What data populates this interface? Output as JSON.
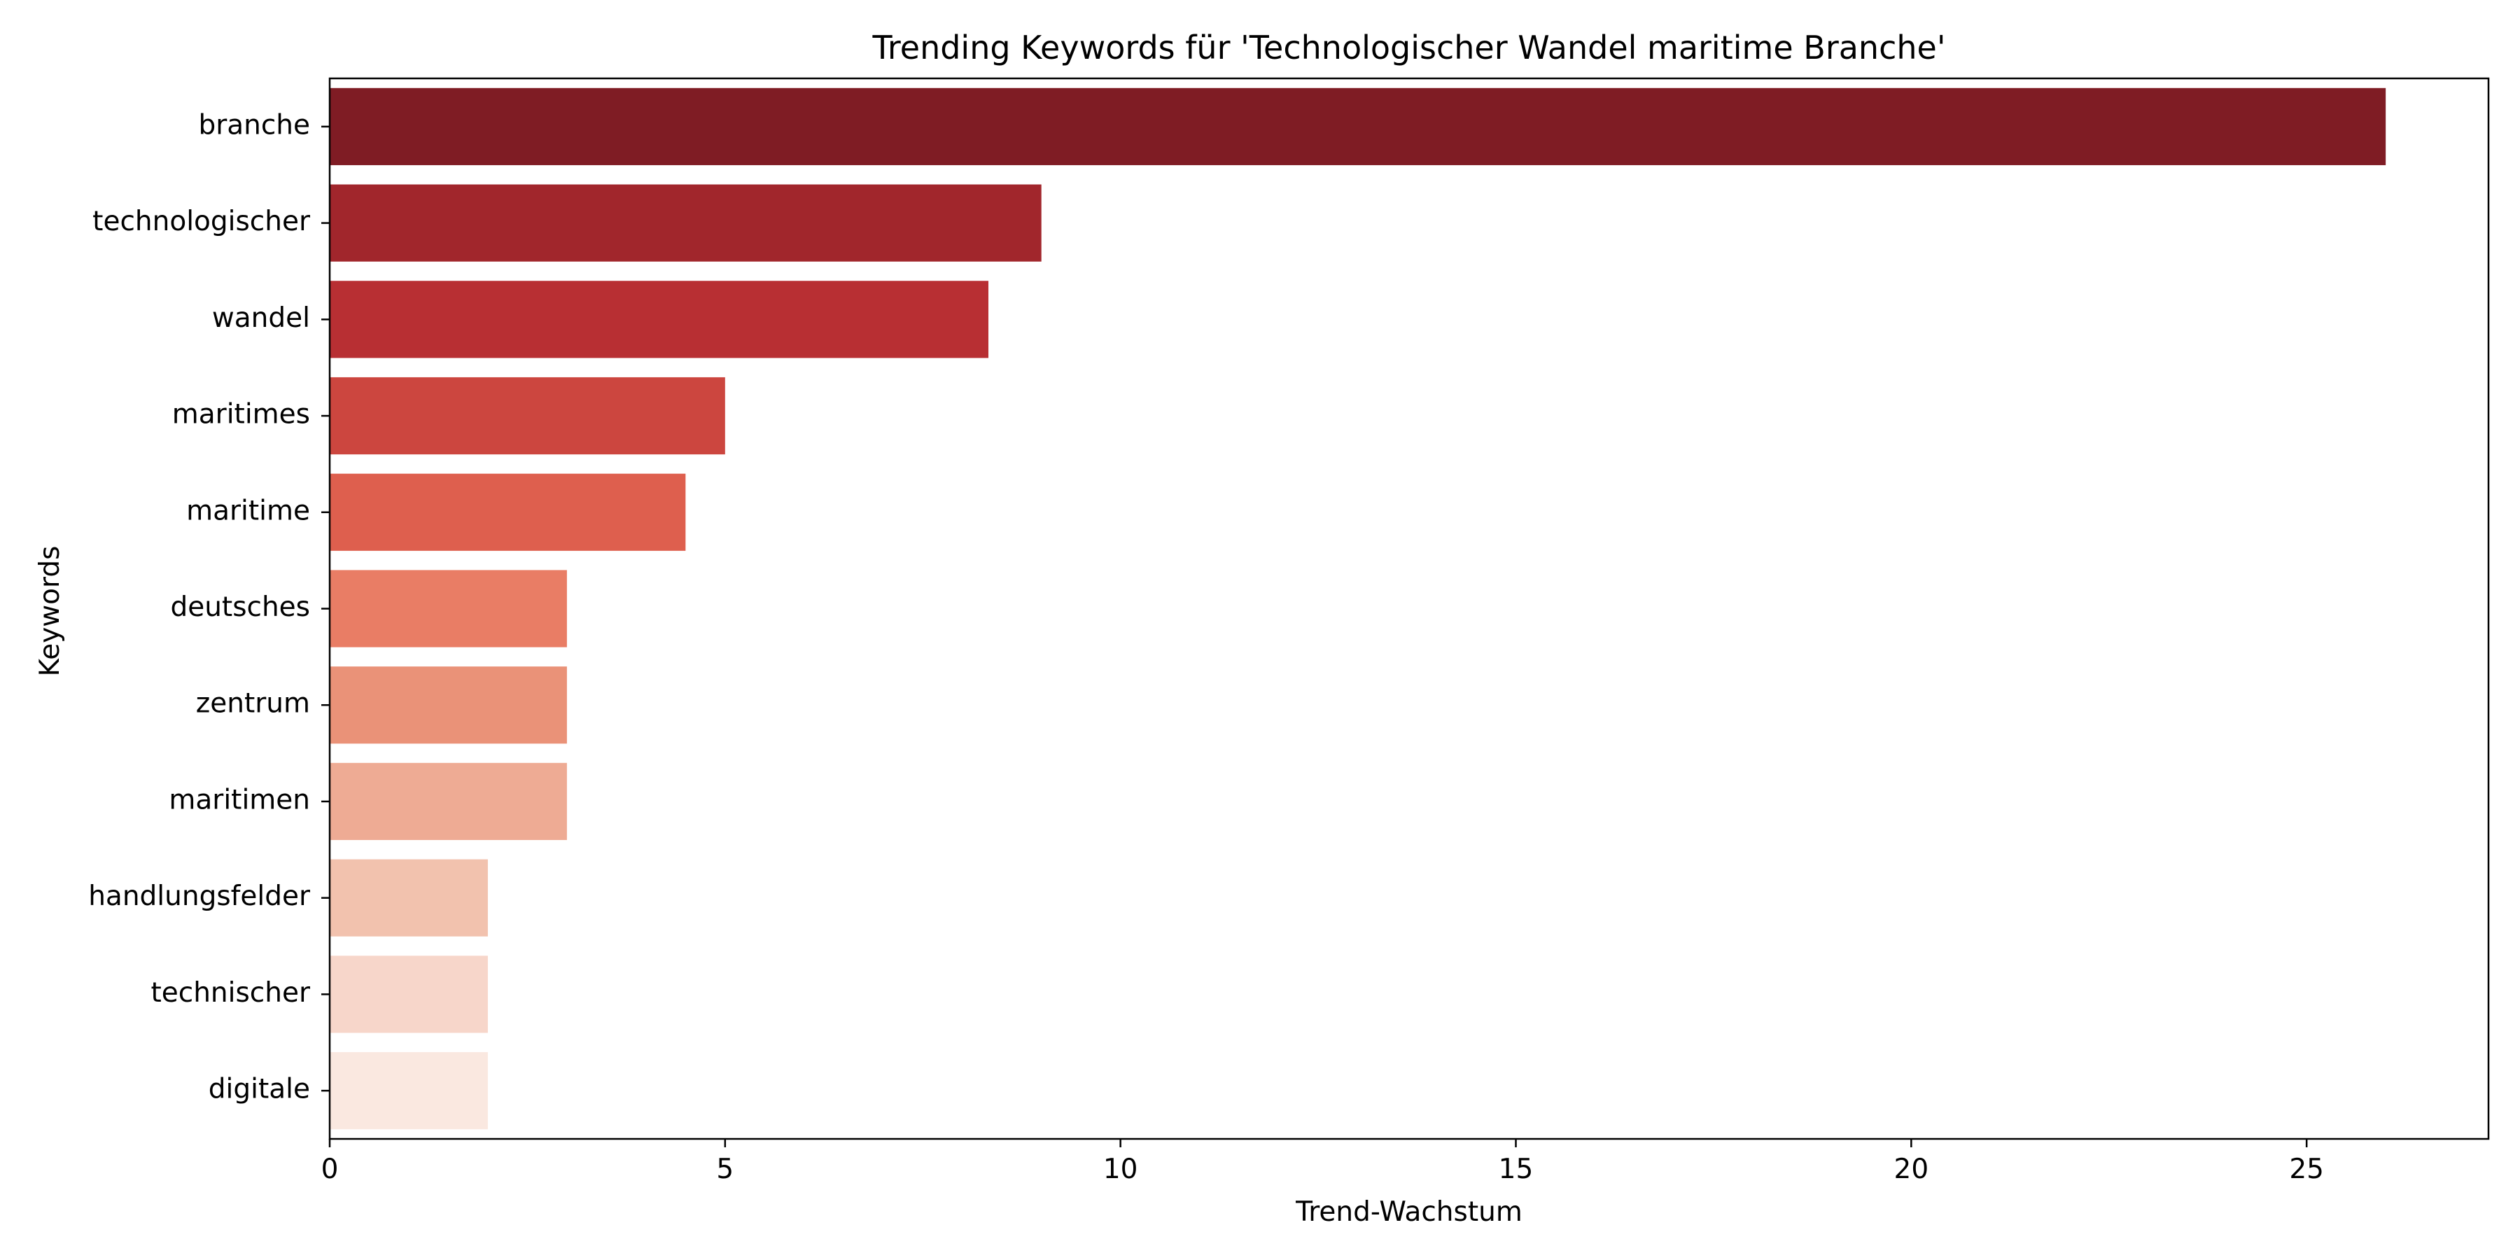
{
  "chart_data": {
    "type": "bar",
    "orientation": "horizontal",
    "title": "Trending Keywords für 'Technologischer Wandel maritime Branche'",
    "xlabel": "Trend-Wachstum",
    "ylabel": "Keywords",
    "categories": [
      "branche",
      "technologischer",
      "wandel",
      "maritimes",
      "maritime",
      "deutsches",
      "zentrum",
      "maritimen",
      "handlungsfelder",
      "technischer",
      "digitale"
    ],
    "values": [
      26,
      9,
      8.33,
      5,
      4.5,
      3,
      3,
      3,
      2,
      2,
      2
    ],
    "colors": [
      "#7f1c24",
      "#a1262c",
      "#b82f33",
      "#cc463f",
      "#de5f4e",
      "#e97d65",
      "#ea9278",
      "#eeab94",
      "#f2c2ae",
      "#f7d6ca",
      "#fae8e0"
    ],
    "xlim": [
      0,
      27.3
    ],
    "xticks": [
      0,
      5,
      10,
      15,
      20,
      25
    ],
    "grid": false
  }
}
